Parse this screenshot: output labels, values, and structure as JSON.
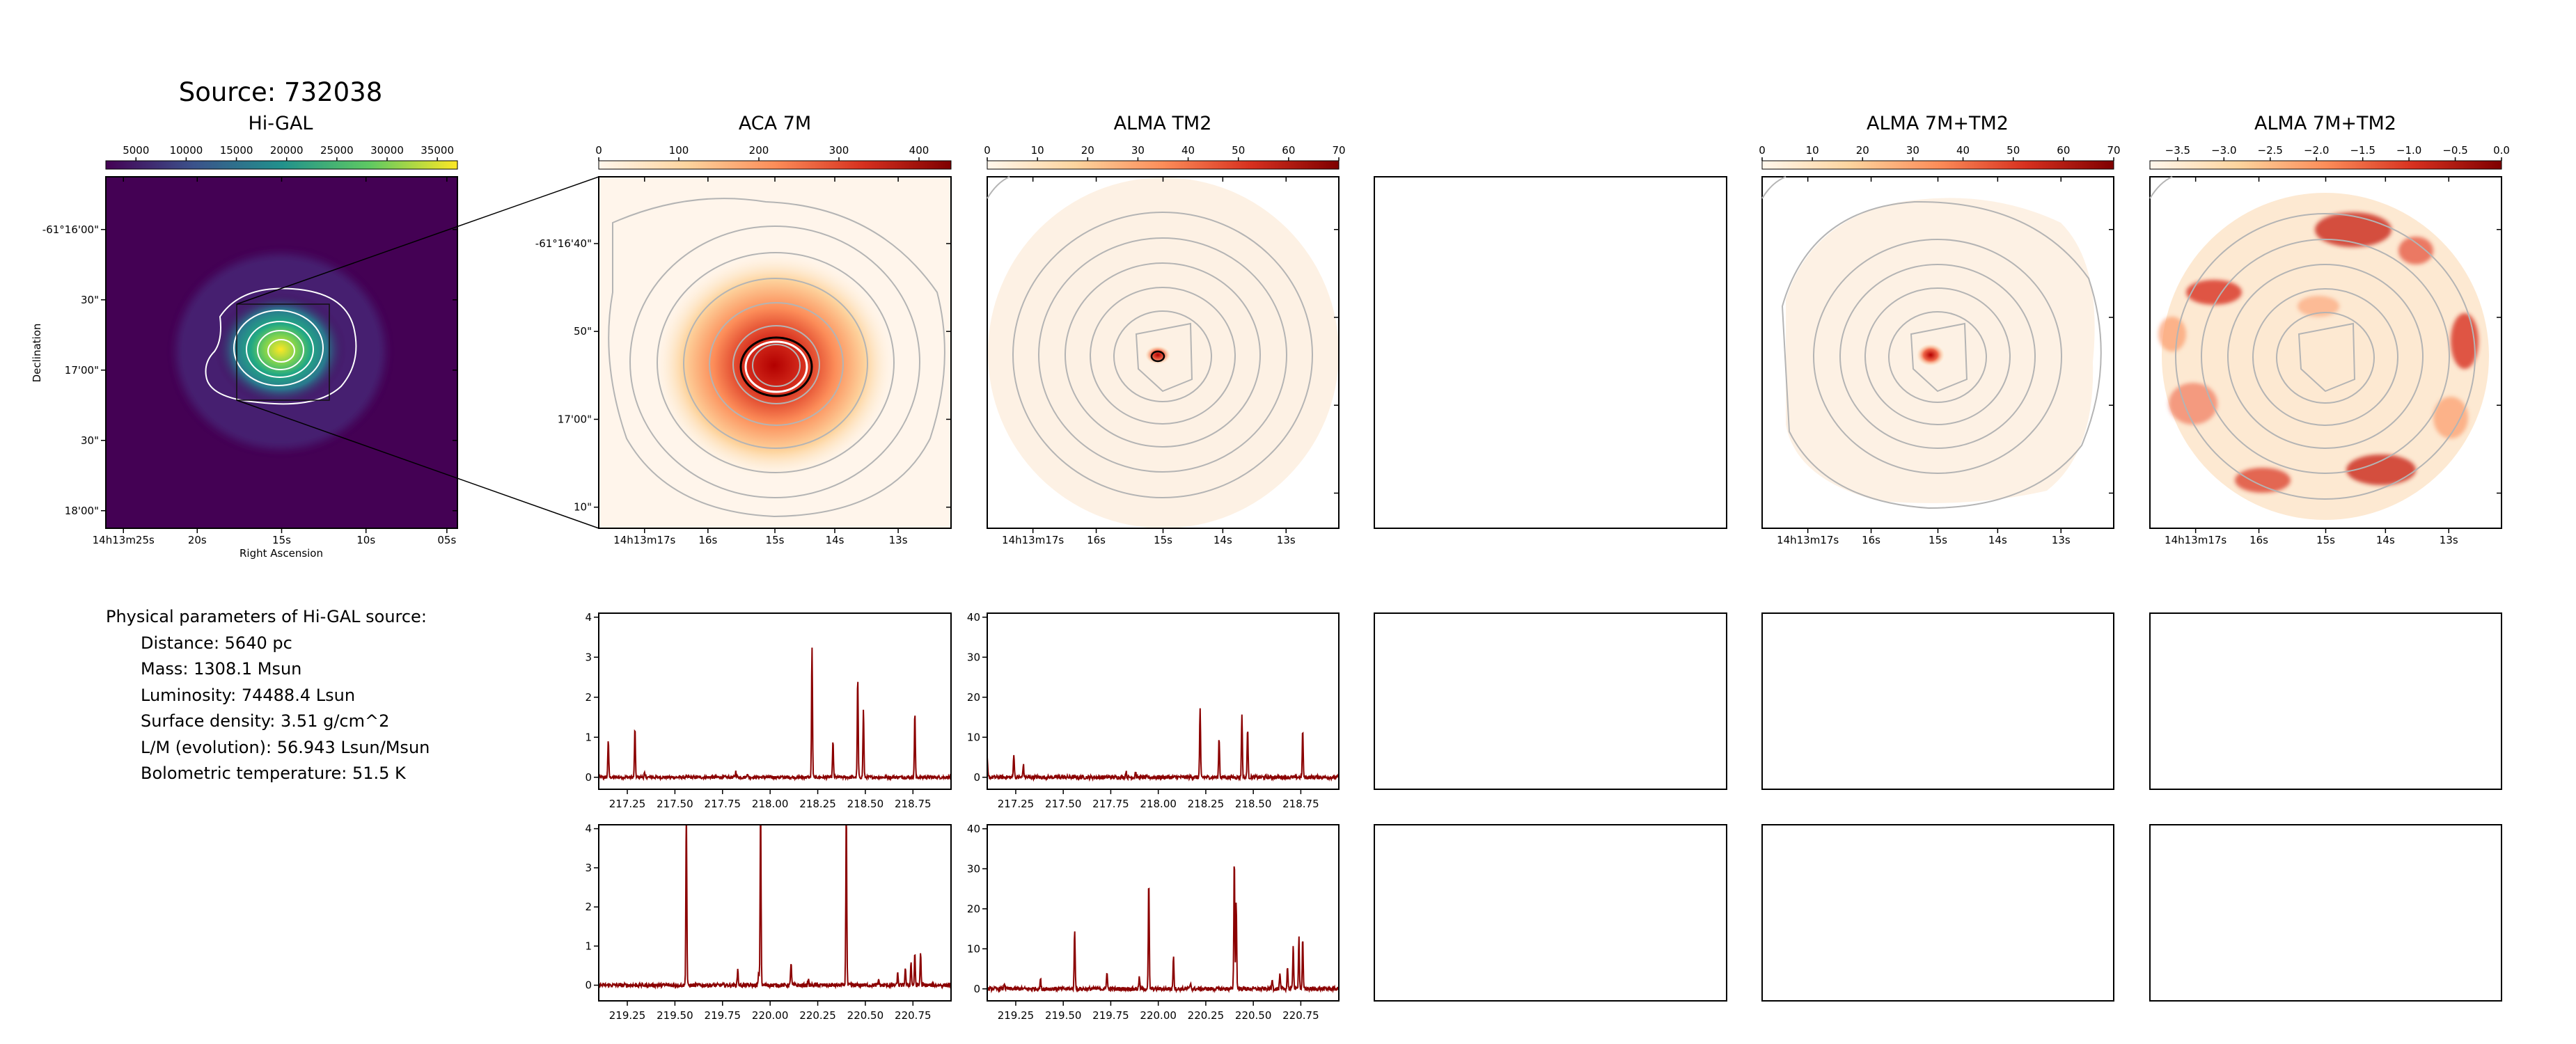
{
  "suptitle": "Source: 732038",
  "params": {
    "heading": "Physical parameters of Hi-GAL source:",
    "lines": [
      "Distance: 5640 pc",
      "Mass: 1308.1 Msun",
      "Luminosity: 74488.4 Lsun",
      "Surface density: 3.51 g/cm^2",
      "L/M (evolution): 56.943 Lsun/Msun",
      "Bolometric temperature: 51.5 K"
    ]
  },
  "colors": {
    "spectrum_line": "#8b0000",
    "contour": "#b4b4b4",
    "higal_contour": "#ffffff"
  },
  "chart_data": [
    {
      "type": "heatmap",
      "id": "higal",
      "title": "Hi-GAL",
      "colormap": "viridis",
      "colorbar": {
        "range": [
          2000,
          37000
        ],
        "ticks": [
          "5000",
          "10000",
          "15000",
          "20000",
          "25000",
          "30000",
          "35000"
        ]
      },
      "xlabel": "Right Ascension",
      "ylabel": "Declination",
      "xticks": [
        "14h13m25s",
        "20s",
        "15s",
        "10s",
        "05s"
      ],
      "yticks": [
        "-61°16'00\"",
        "30\"",
        "17'00\"",
        "30\"",
        "18'00\""
      ],
      "peak": 37000,
      "background": 2000
    },
    {
      "type": "heatmap",
      "id": "aca7m",
      "title": "ACA 7M",
      "colormap": "OrRd",
      "colorbar": {
        "range": [
          0,
          440
        ],
        "ticks": [
          "0",
          "100",
          "200",
          "300",
          "400"
        ]
      },
      "xticks": [
        "14h13m17s",
        "16s",
        "15s",
        "14s",
        "13s"
      ],
      "yticks": [
        "-61°16'40\"",
        "50\"",
        "17'00\"",
        "10\""
      ],
      "peak": 440
    },
    {
      "type": "heatmap",
      "id": "tm2",
      "title": "ALMA TM2",
      "colormap": "OrRd",
      "colorbar": {
        "range": [
          0,
          70
        ],
        "ticks": [
          "0",
          "10",
          "20",
          "30",
          "40",
          "50",
          "60",
          "70"
        ]
      },
      "xticks": [
        "14h13m17s",
        "16s",
        "15s",
        "14s",
        "13s"
      ],
      "peak": 70
    },
    {
      "type": "heatmap",
      "id": "combo",
      "title": "ALMA 7M+TM2",
      "colormap": "OrRd",
      "colorbar": {
        "range": [
          0,
          70
        ],
        "ticks": [
          "0",
          "10",
          "20",
          "30",
          "40",
          "50",
          "60",
          "70"
        ]
      },
      "xticks": [
        "14h13m17s",
        "16s",
        "15s",
        "14s",
        "13s"
      ],
      "peak": 70
    },
    {
      "type": "heatmap",
      "id": "combo_log",
      "title": "ALMA 7M+TM2",
      "colormap": "OrRd",
      "colorbar": {
        "range": [
          -3.8,
          0
        ],
        "ticks": [
          "−3.5",
          "−3.0",
          "−2.5",
          "−2.0",
          "−1.5",
          "−1.0",
          "−0.5",
          "0.0"
        ]
      },
      "xticks": [
        "14h13m17s",
        "16s",
        "15s",
        "14s",
        "13s"
      ]
    },
    {
      "type": "line",
      "id": "spec_aca_lsb",
      "xlim": [
        217.1,
        218.95
      ],
      "ylim": [
        -0.3,
        4.1
      ],
      "xticks": [
        217.25,
        217.5,
        217.75,
        218.0,
        218.25,
        218.5,
        218.75
      ],
      "yticks": [
        0,
        1,
        2,
        3,
        4
      ],
      "noise": 0.04,
      "peaks": [
        [
          217.15,
          0.95
        ],
        [
          217.29,
          1.25
        ],
        [
          217.34,
          0.1
        ],
        [
          217.82,
          0.15
        ],
        [
          218.22,
          3.25
        ],
        [
          218.33,
          0.9
        ],
        [
          218.46,
          2.5
        ],
        [
          218.49,
          1.7
        ],
        [
          218.76,
          1.65
        ],
        [
          217.88,
          0.1
        ]
      ]
    },
    {
      "type": "line",
      "id": "spec_tm2_lsb",
      "xlim": [
        217.1,
        218.95
      ],
      "ylim": [
        -3,
        41
      ],
      "xticks": [
        217.25,
        217.5,
        217.75,
        218.0,
        218.25,
        218.5,
        218.75
      ],
      "yticks": [
        0,
        10,
        20,
        30,
        40
      ],
      "noise": 0.5,
      "peaks": [
        [
          217.1,
          4.5
        ],
        [
          217.24,
          6
        ],
        [
          217.29,
          3.2
        ],
        [
          217.83,
          1.5
        ],
        [
          217.88,
          1.3
        ],
        [
          218.22,
          17
        ],
        [
          218.32,
          10
        ],
        [
          218.44,
          16
        ],
        [
          218.47,
          12.5
        ],
        [
          218.76,
          12
        ]
      ]
    },
    {
      "type": "line",
      "id": "spec_aca_usb",
      "xlim": [
        219.1,
        220.95
      ],
      "ylim": [
        -0.4,
        4.1
      ],
      "xticks": [
        219.25,
        219.5,
        219.75,
        220.0,
        220.25,
        220.5,
        220.75
      ],
      "yticks": [
        0,
        1,
        2,
        3,
        4
      ],
      "noise": 0.05,
      "peaks": [
        [
          219.56,
          4.5
        ],
        [
          219.83,
          0.4
        ],
        [
          219.94,
          0.3
        ],
        [
          219.95,
          4.5
        ],
        [
          220.11,
          0.6
        ],
        [
          220.2,
          0.15
        ],
        [
          220.4,
          4.5
        ],
        [
          220.67,
          0.3
        ],
        [
          220.71,
          0.45
        ],
        [
          220.74,
          0.6
        ],
        [
          220.76,
          0.8
        ],
        [
          220.79,
          0.85
        ],
        [
          220.57,
          0.15
        ]
      ]
    },
    {
      "type": "line",
      "id": "spec_tm2_usb",
      "xlim": [
        219.1,
        220.95
      ],
      "ylim": [
        -3,
        41
      ],
      "xticks": [
        219.25,
        219.5,
        219.75,
        220.0,
        220.25,
        220.5,
        220.75
      ],
      "yticks": [
        0,
        10,
        20,
        30,
        40
      ],
      "noise": 0.5,
      "peaks": [
        [
          219.19,
          1.5
        ],
        [
          219.38,
          2.5
        ],
        [
          219.56,
          15
        ],
        [
          219.73,
          4.5
        ],
        [
          219.9,
          3
        ],
        [
          219.95,
          27
        ],
        [
          220.08,
          8.5
        ],
        [
          220.17,
          1.5
        ],
        [
          220.4,
          33
        ],
        [
          220.41,
          22
        ],
        [
          220.6,
          2.5
        ],
        [
          220.64,
          3.5
        ],
        [
          220.68,
          5.5
        ],
        [
          220.71,
          11
        ],
        [
          220.74,
          13
        ],
        [
          220.76,
          12.5
        ]
      ]
    }
  ]
}
